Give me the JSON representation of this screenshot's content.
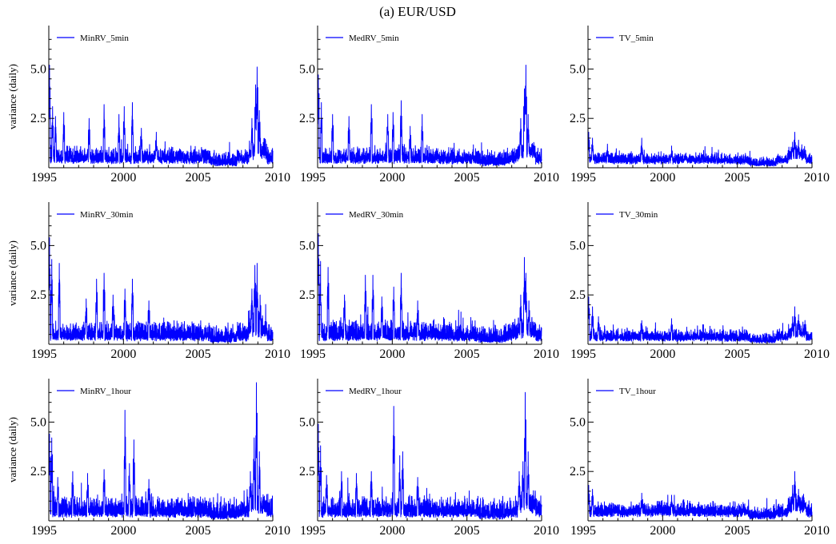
{
  "figure": {
    "title": "(a) EUR/USD",
    "ylabel": "variance (daily)",
    "colors": {
      "series": "#0000ff",
      "axis": "#000000"
    }
  },
  "chart_data": [
    {
      "type": "line",
      "series": [
        {
          "name": "MinRV_5min"
        }
      ],
      "xlim": [
        1995,
        2010
      ],
      "ylim": [
        0,
        7.2
      ],
      "yticks": [
        2.5,
        5.0
      ],
      "xticks": [
        1995,
        2000,
        2005,
        2010
      ],
      "base": 0.55,
      "base_late": 0.5,
      "noise": 0.35,
      "spikes": [
        [
          1995.05,
          5.2
        ],
        [
          1995.25,
          3.1
        ],
        [
          1995.45,
          2.6
        ],
        [
          1996.0,
          2.8
        ],
        [
          1997.7,
          2.5
        ],
        [
          1998.7,
          3.2
        ],
        [
          1999.7,
          2.7
        ],
        [
          2000.05,
          3.1
        ],
        [
          2000.6,
          3.3
        ],
        [
          2001.2,
          2.0
        ],
        [
          2002.2,
          1.8
        ]
      ],
      "crisis": [
        [
          2008.6,
          2.5
        ],
        [
          2008.85,
          4.2
        ],
        [
          2008.95,
          5.1
        ],
        [
          2009.1,
          2.9
        ]
      ]
    },
    {
      "type": "line",
      "series": [
        {
          "name": "MedRV_5min"
        }
      ],
      "xlim": [
        1995,
        2010
      ],
      "ylim": [
        0,
        7.2
      ],
      "yticks": [
        2.5,
        5.0
      ],
      "xticks": [
        1995,
        2000,
        2005,
        2010
      ],
      "base": 0.55,
      "base_late": 0.5,
      "noise": 0.35,
      "spikes": [
        [
          1995.05,
          4.7
        ],
        [
          1995.25,
          3.3
        ],
        [
          1996.0,
          2.7
        ],
        [
          1997.1,
          2.6
        ],
        [
          1998.6,
          3.2
        ],
        [
          1999.7,
          2.7
        ],
        [
          2000.05,
          2.8
        ],
        [
          2000.6,
          3.4
        ],
        [
          2001.2,
          2.1
        ],
        [
          2002.0,
          2.7
        ]
      ],
      "crisis": [
        [
          2008.6,
          2.5
        ],
        [
          2008.85,
          4.0
        ],
        [
          2008.95,
          5.2
        ],
        [
          2009.1,
          2.7
        ]
      ]
    },
    {
      "type": "line",
      "series": [
        {
          "name": "TV_5min"
        }
      ],
      "xlim": [
        1995,
        2010
      ],
      "ylim": [
        0,
        7.2
      ],
      "yticks": [
        2.5,
        5.0
      ],
      "xticks": [
        1995,
        2000,
        2005,
        2010
      ],
      "base": 0.5,
      "base_late": 0.45,
      "noise": 0.22,
      "spikes": [
        [
          1995.05,
          1.8
        ],
        [
          1995.3,
          1.5
        ],
        [
          1996.3,
          1.2
        ],
        [
          1998.6,
          1.5
        ],
        [
          2000.6,
          1.1
        ]
      ],
      "crisis": [
        [
          2008.7,
          1.3
        ],
        [
          2008.85,
          1.8
        ],
        [
          2009.1,
          1.4
        ]
      ]
    },
    {
      "type": "line",
      "series": [
        {
          "name": "MinRV_30min"
        }
      ],
      "xlim": [
        1995,
        2010
      ],
      "ylim": [
        0,
        7.2
      ],
      "yticks": [
        2.5,
        5.0
      ],
      "xticks": [
        1995,
        2000,
        2005,
        2010
      ],
      "base": 0.45,
      "base_late": 0.4,
      "noise": 0.45,
      "spikes": [
        [
          1995.05,
          5.4
        ],
        [
          1995.2,
          4.3
        ],
        [
          1995.7,
          4.1
        ],
        [
          1997.5,
          2.3
        ],
        [
          1998.2,
          3.3
        ],
        [
          1998.7,
          3.6
        ],
        [
          1999.3,
          2.5
        ],
        [
          2000.1,
          2.8
        ],
        [
          2000.6,
          3.3
        ],
        [
          2001.7,
          2.2
        ]
      ],
      "crisis": [
        [
          2008.6,
          2.8
        ],
        [
          2008.8,
          4.0
        ],
        [
          2008.95,
          4.1
        ],
        [
          2009.15,
          2.5
        ]
      ]
    },
    {
      "type": "line",
      "series": [
        {
          "name": "MedRV_30min"
        }
      ],
      "xlim": [
        1995,
        2010
      ],
      "ylim": [
        0,
        7.2
      ],
      "yticks": [
        2.5,
        5.0
      ],
      "xticks": [
        1995,
        2000,
        2005,
        2010
      ],
      "base": 0.45,
      "base_late": 0.4,
      "noise": 0.45,
      "spikes": [
        [
          1995.05,
          5.6
        ],
        [
          1995.2,
          4.2
        ],
        [
          1995.7,
          3.9
        ],
        [
          1996.8,
          2.5
        ],
        [
          1998.2,
          3.5
        ],
        [
          1998.7,
          3.5
        ],
        [
          1999.3,
          2.4
        ],
        [
          2000.1,
          2.9
        ],
        [
          2000.6,
          3.6
        ],
        [
          2001.7,
          2.2
        ]
      ],
      "crisis": [
        [
          2008.6,
          2.5
        ],
        [
          2008.85,
          4.4
        ],
        [
          2008.95,
          3.6
        ],
        [
          2009.15,
          2.2
        ]
      ]
    },
    {
      "type": "line",
      "series": [
        {
          "name": "TV_30min"
        }
      ],
      "xlim": [
        1995,
        2010
      ],
      "ylim": [
        0,
        7.2
      ],
      "yticks": [
        2.5,
        5.0
      ],
      "xticks": [
        1995,
        2000,
        2005,
        2010
      ],
      "base": 0.4,
      "base_late": 0.38,
      "noise": 0.25,
      "spikes": [
        [
          1995.05,
          2.4
        ],
        [
          1995.3,
          1.9
        ],
        [
          1995.7,
          1.4
        ],
        [
          1998.6,
          1.2
        ],
        [
          2000.6,
          1.3
        ]
      ],
      "crisis": [
        [
          2008.7,
          1.4
        ],
        [
          2008.85,
          1.9
        ],
        [
          2009.1,
          1.5
        ]
      ]
    },
    {
      "type": "line",
      "series": [
        {
          "name": "MinRV_1hour"
        }
      ],
      "xlim": [
        1995,
        2010
      ],
      "ylim": [
        0,
        7.2
      ],
      "yticks": [
        2.5,
        5.0
      ],
      "xticks": [
        1995,
        2000,
        2005,
        2010
      ],
      "base": 0.45,
      "base_late": 0.45,
      "noise": 0.5,
      "spikes": [
        [
          1995.05,
          4.4
        ],
        [
          1995.2,
          4.2
        ],
        [
          1995.6,
          2.2
        ],
        [
          1996.6,
          2.5
        ],
        [
          1997.6,
          2.4
        ],
        [
          1998.7,
          2.6
        ],
        [
          2000.1,
          5.6
        ],
        [
          2000.4,
          2.9
        ],
        [
          2000.7,
          4.1
        ],
        [
          2001.7,
          2.1
        ]
      ],
      "crisis": [
        [
          2008.5,
          2.5
        ],
        [
          2008.75,
          4.2
        ],
        [
          2008.9,
          7.0
        ],
        [
          2009.1,
          3.5
        ]
      ]
    },
    {
      "type": "line",
      "series": [
        {
          "name": "MedRV_1hour"
        }
      ],
      "xlim": [
        1995,
        2010
      ],
      "ylim": [
        0,
        7.2
      ],
      "yticks": [
        2.5,
        5.0
      ],
      "xticks": [
        1995,
        2000,
        2005,
        2010
      ],
      "base": 0.45,
      "base_late": 0.45,
      "noise": 0.5,
      "spikes": [
        [
          1995.05,
          4.9
        ],
        [
          1995.2,
          3.8
        ],
        [
          1995.6,
          2.3
        ],
        [
          1996.6,
          2.5
        ],
        [
          1997.6,
          2.4
        ],
        [
          1998.6,
          2.5
        ],
        [
          2000.1,
          5.8
        ],
        [
          2000.5,
          3.3
        ],
        [
          2000.7,
          3.5
        ],
        [
          2001.7,
          2.2
        ]
      ],
      "crisis": [
        [
          2008.5,
          2.5
        ],
        [
          2008.75,
          3.0
        ],
        [
          2008.9,
          6.5
        ],
        [
          2009.1,
          3.5
        ]
      ]
    },
    {
      "type": "line",
      "series": [
        {
          "name": "TV_1hour"
        }
      ],
      "xlim": [
        1995,
        2010
      ],
      "ylim": [
        0,
        7.2
      ],
      "yticks": [
        2.5,
        5.0
      ],
      "xticks": [
        1995,
        2000,
        2005,
        2010
      ],
      "base": 0.55,
      "base_late": 0.5,
      "noise": 0.3,
      "spikes": [
        [
          1995.05,
          1.8
        ],
        [
          1995.3,
          1.6
        ],
        [
          1998.6,
          1.4
        ],
        [
          2000.6,
          1.3
        ]
      ],
      "crisis": [
        [
          2008.7,
          1.8
        ],
        [
          2008.85,
          2.5
        ],
        [
          2009.1,
          1.6
        ]
      ]
    }
  ]
}
